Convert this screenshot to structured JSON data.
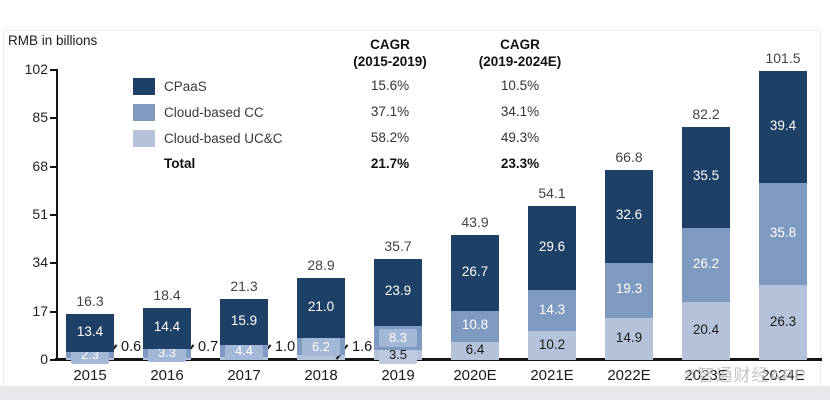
{
  "header": {
    "title": "RMB in billions"
  },
  "cagr": {
    "columns": [
      {
        "line1": "CAGR",
        "line2": "(2015-2019)",
        "values": [
          "15.6%",
          "37.1%",
          "58.2%",
          "21.7%"
        ]
      },
      {
        "line1": "CAGR",
        "line2": "(2019-2024E)",
        "values": [
          "10.5%",
          "34.1%",
          "49.3%",
          "23.3%"
        ]
      }
    ]
  },
  "legend": {
    "total_label": "Total"
  },
  "watermark": {
    "text": "©智通财经APP"
  },
  "chart_data": {
    "type": "bar",
    "stacked": true,
    "title": "RMB in billions",
    "ylabel": "RMB in billions",
    "grid": false,
    "legend_position": "upper left inside",
    "categories": [
      "2015",
      "2016",
      "2017",
      "2018",
      "2019",
      "2020E",
      "2021E",
      "2022E",
      "2023E",
      "2024E"
    ],
    "series": [
      {
        "key": "cpaas",
        "name": "CPaaS",
        "color": "#1e3f66",
        "values": [
          13.4,
          14.4,
          15.9,
          21.0,
          23.9,
          26.7,
          29.6,
          32.6,
          35.5,
          39.4
        ]
      },
      {
        "key": "cc",
        "name": "Cloud-based CC",
        "color": "#7e9ac1",
        "values": [
          2.3,
          3.3,
          4.4,
          6.2,
          8.3,
          10.8,
          14.3,
          19.3,
          26.2,
          35.8
        ]
      },
      {
        "key": "ucc",
        "name": "Cloud-based UC&C",
        "color": "#b5c3da",
        "values": [
          0.6,
          0.7,
          1.0,
          1.6,
          3.5,
          6.4,
          10.2,
          14.9,
          20.4,
          26.3
        ]
      }
    ],
    "totals": [
      16.3,
      18.4,
      21.3,
      28.9,
      35.7,
      43.9,
      54.1,
      66.8,
      82.2,
      101.5
    ],
    "y_ticks": [
      0,
      17,
      34,
      51,
      68,
      85,
      102
    ],
    "ylim": [
      0,
      102
    ],
    "chip_colors": {
      "cc": "#a3b8d6",
      "ucc": "#bcc9de"
    }
  }
}
